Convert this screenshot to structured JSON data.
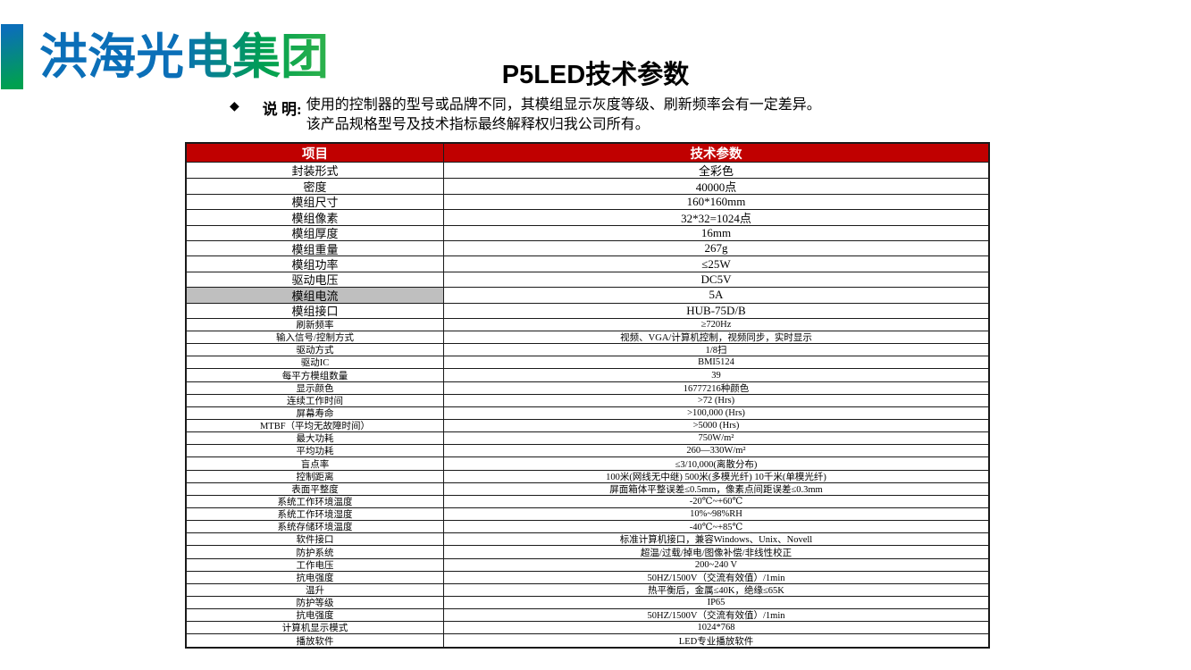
{
  "logo": {
    "text": "洪海光电集团"
  },
  "title": "P5LED技术参数",
  "note": {
    "bullet": "◆",
    "label": "说 明:",
    "line1": "使用的控制器的型号或品牌不同，其模组显示灰度等级、刷新频率会有一定差异。",
    "line2": "该产品规格型号及技术指标最终解释权归我公司所有。"
  },
  "colors": {
    "header_red": "#C00000",
    "highlight_gray": "#BFBFBF",
    "logo_blue": "#0B6FB8",
    "logo_green": "#00A050",
    "logo_green2": "#2FB24B"
  },
  "table": {
    "headers": [
      "项目",
      "技术参数"
    ],
    "rows": [
      {
        "item": "封装形式",
        "value": "全彩色",
        "size": "lg",
        "highlight": false
      },
      {
        "item": "密度",
        "value": "40000点",
        "size": "lg",
        "highlight": false
      },
      {
        "item": "模组尺寸",
        "value": "160*160mm",
        "size": "lg",
        "highlight": false
      },
      {
        "item": "模组像素",
        "value": "32*32=1024点",
        "size": "lg",
        "highlight": false
      },
      {
        "item": "模组厚度",
        "value": "16mm",
        "size": "lg",
        "highlight": false
      },
      {
        "item": "模组重量",
        "value": "267g",
        "size": "lg",
        "highlight": false
      },
      {
        "item": "模组功率",
        "value": "≤25W",
        "size": "lg",
        "highlight": false
      },
      {
        "item": "驱动电压",
        "value": "DC5V",
        "size": "lg",
        "highlight": false
      },
      {
        "item": "模组电流",
        "value": "5A",
        "size": "lg",
        "highlight": true
      },
      {
        "item": "模组接口",
        "value": "HUB-75D/B",
        "size": "lg",
        "highlight": false
      },
      {
        "item": "刷新频率",
        "value": "≥720Hz",
        "size": "sm",
        "highlight": false
      },
      {
        "item": "输入信号/控制方式",
        "value": "视频、VGA/计算机控制，视频同步，实时显示",
        "size": "sm",
        "highlight": false
      },
      {
        "item": "驱动方式",
        "value": "1/8扫",
        "size": "sm",
        "highlight": false
      },
      {
        "item": "驱动IC",
        "value": "BMI5124",
        "size": "sm",
        "highlight": false
      },
      {
        "item": "每平方模组数量",
        "value": "39",
        "size": "sm",
        "highlight": false
      },
      {
        "item": "显示颜色",
        "value": "16777216种颜色",
        "size": "sm",
        "highlight": false
      },
      {
        "item": "连续工作时间",
        "value": ">72 (Hrs)",
        "size": "sm",
        "highlight": false
      },
      {
        "item": "屏幕寿命",
        "value": ">100,000 (Hrs)",
        "size": "sm",
        "highlight": false
      },
      {
        "item": "MTBF（平均无故障时间）",
        "value": ">5000 (Hrs)",
        "size": "sm",
        "highlight": false
      },
      {
        "item": "最大功耗",
        "value": "750W/m²",
        "size": "sm",
        "highlight": false
      },
      {
        "item": "平均功耗",
        "value": "260—330W/m²",
        "size": "sm",
        "highlight": false
      },
      {
        "item": "盲点率",
        "value": "≤3/10,000(离散分布)",
        "size": "sm",
        "highlight": false
      },
      {
        "item": "控制距离",
        "value": "100米(网线无中继) 500米(多模光纤) 10千米(单模光纤)",
        "size": "sm",
        "highlight": false
      },
      {
        "item": "表面平整度",
        "value": "屏面箱体平整误差≤0.5mm，像素点间距误差≤0.3mm",
        "size": "sm",
        "highlight": false
      },
      {
        "item": "系统工作环境温度",
        "value": "-20℃~+60℃",
        "size": "sm",
        "highlight": false
      },
      {
        "item": "系统工作环境湿度",
        "value": "10%~98%RH",
        "size": "sm",
        "highlight": false
      },
      {
        "item": "系统存储环境温度",
        "value": "-40℃~+85℃",
        "size": "sm",
        "highlight": false
      },
      {
        "item": "软件接口",
        "value": "标准计算机接口，兼容Windows、Unix、Novell",
        "size": "sm",
        "highlight": false
      },
      {
        "item": "防护系统",
        "value": "超温/过载/掉电/图像补偿/非线性校正",
        "size": "sm",
        "highlight": false
      },
      {
        "item": "工作电压",
        "value": "200~240 V",
        "size": "sm",
        "highlight": false
      },
      {
        "item": "抗电强度",
        "value": "50HZ/1500V（交流有效值）/1min",
        "size": "sm",
        "highlight": false
      },
      {
        "item": "温升",
        "value": "热平衡后，金属≤40K，绝缘≤65K",
        "size": "sm",
        "highlight": false
      },
      {
        "item": "防护等级",
        "value": "IP65",
        "size": "sm",
        "highlight": false
      },
      {
        "item": "抗电强度",
        "value": "50HZ/1500V（交流有效值）/1min",
        "size": "sm",
        "highlight": false
      },
      {
        "item": "计算机显示模式",
        "value": "1024*768",
        "size": "sm",
        "highlight": false
      },
      {
        "item": "播放软件",
        "value": "LED专业播放软件",
        "size": "sm",
        "highlight": false
      }
    ]
  }
}
